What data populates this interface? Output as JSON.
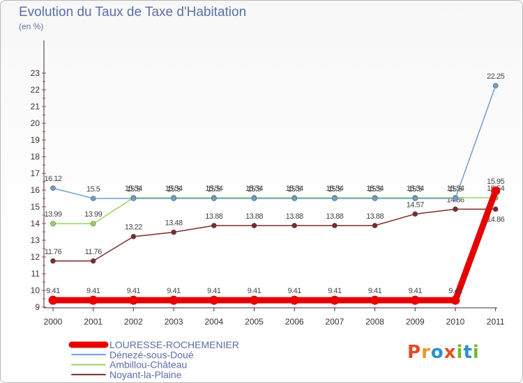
{
  "title": "Evolution du Taux de Taxe d'Habitation",
  "subtitle": "(en %)",
  "logo": {
    "letters": [
      "P",
      "r",
      "o",
      "x",
      "i",
      "t",
      "i"
    ],
    "colors": [
      "#e84a1e",
      "#e89a1e",
      "#2a8fd0",
      "#e84a1e",
      "#79b829",
      "#2a8fd0",
      "#79b829"
    ]
  },
  "chart_data": {
    "type": "line",
    "x": [
      "2000",
      "2001",
      "2002",
      "2003",
      "2004",
      "2005",
      "2006",
      "2007",
      "2008",
      "2009",
      "2010",
      "2011"
    ],
    "ylim": [
      9,
      23
    ],
    "yticks": [
      "9",
      "10",
      "11",
      "12",
      "13",
      "14",
      "15",
      "16",
      "17",
      "18",
      "19",
      "20",
      "21",
      "22",
      "23"
    ],
    "grid": false,
    "legend_position": "bottom-left",
    "series": [
      {
        "name": "LOURESSE-ROCHEMENIER",
        "color": "#e60000",
        "values": [
          9.41,
          9.41,
          9.41,
          9.41,
          9.41,
          9.41,
          9.41,
          9.41,
          9.41,
          9.41,
          9.41,
          15.95
        ],
        "labels": [
          "9.41",
          "9.41",
          "9.41",
          "9.41",
          "9.41",
          "9.41",
          "9.41",
          "9.41",
          "9.41",
          "9.41",
          "9.41",
          "15.95"
        ]
      },
      {
        "name": "Dénezé-sous-Doué",
        "color": "#6b9fd4",
        "values": [
          16.12,
          15.5,
          15.5,
          15.5,
          15.5,
          15.5,
          15.5,
          15.5,
          15.5,
          15.5,
          15.5,
          22.25
        ],
        "labels": [
          "16.12",
          "15.5",
          "15.5",
          "15.5",
          "15.5",
          "15.5",
          "15.5",
          "15.5",
          "15.5",
          "15.5",
          "15.5",
          "22.25"
        ]
      },
      {
        "name": "Ambillou-Château",
        "color": "#99d45a",
        "values": [
          13.99,
          13.99,
          15.54,
          15.54,
          15.54,
          15.54,
          15.54,
          15.54,
          15.54,
          15.54,
          15.54,
          15.54
        ],
        "labels": [
          "13.99",
          "13.99",
          "15.54",
          "15.54",
          "15.54",
          "15.54",
          "15.54",
          "15.54",
          "15.54",
          "15.54",
          "15.54",
          "15.54"
        ]
      },
      {
        "name": "Noyant-la-Plaine",
        "color": "#7a2a2a",
        "values": [
          11.76,
          11.76,
          13.22,
          13.48,
          13.88,
          13.88,
          13.88,
          13.88,
          13.88,
          14.57,
          14.86,
          14.86
        ],
        "labels": [
          "11.76",
          "11.76",
          "13.22",
          "13.48",
          "13.88",
          "13.88",
          "13.88",
          "13.88",
          "13.88",
          "14.57",
          "14.86",
          "14.86"
        ]
      }
    ]
  }
}
